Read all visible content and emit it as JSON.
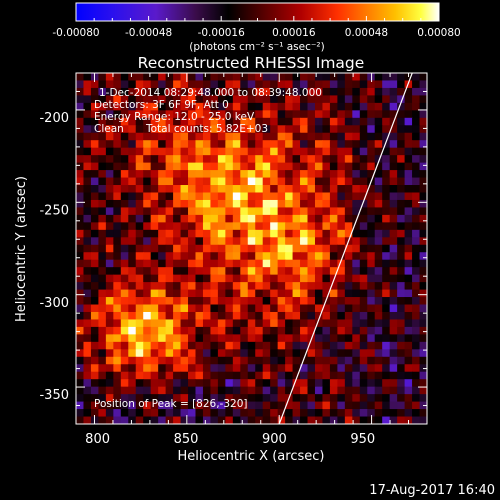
{
  "title": "Reconstructed RHESSI Image",
  "colorbar": {
    "tick_labels": [
      "-0.00080",
      "-0.00048",
      "-0.00016",
      "0.00016",
      "0.00048",
      "0.00080"
    ],
    "unit_label": "(photons cm⁻² s⁻¹ asec⁻²)",
    "range": [
      -0.0008,
      0.0008
    ]
  },
  "axes": {
    "xlabel": "Heliocentric X (arcsec)",
    "ylabel": "Heliocentric Y (arcsec)",
    "x_tick_labels": [
      "800",
      "850",
      "900",
      "950"
    ],
    "y_tick_labels": [
      "-200",
      "-250",
      "-300",
      "-350"
    ],
    "xlim": [
      790,
      980
    ],
    "ylim": [
      -370,
      -180
    ]
  },
  "info": {
    "time_range": "1-Dec-2014 08:29:48.000 to 08:39:48.000",
    "detectors": "Detectors: 3F 6F 9F, Att 0",
    "energy": "Energy Range: 12.0 - 25.0 keV",
    "algorithm": "Clean",
    "total_counts": "Total counts: 5.82E+03",
    "peak": "Position of Peak = [826,-320]"
  },
  "peak_position": [
    826,
    -320
  ],
  "limb_line": {
    "x": [
      900,
      972
    ],
    "y": [
      -370,
      -180
    ]
  },
  "footer": "17-Aug-2017 16:40"
}
